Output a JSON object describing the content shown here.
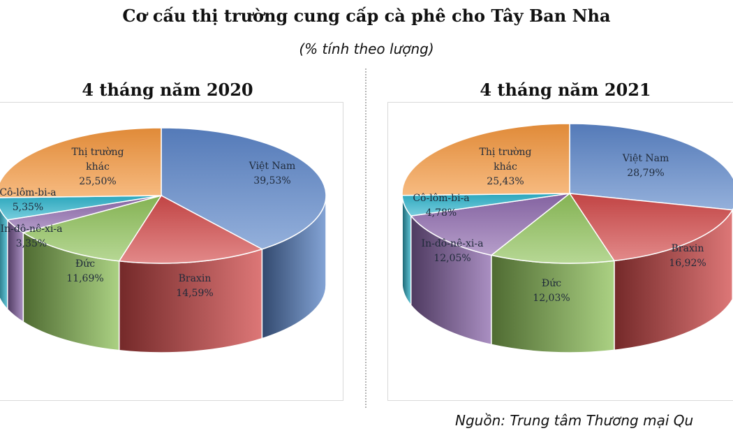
{
  "title": "Cơ cấu thị trường cung cấp cà phê cho Tây Ban Nha",
  "subtitle": "(% tính theo lượng)",
  "source": "Nguồn: Trung tâm Thương mại Qu",
  "chart_data": [
    {
      "type": "pie",
      "title": "4 tháng năm 2020",
      "categories": [
        "Việt Nam",
        "Braxin",
        "Đức",
        "In-đô-nê-xi-a",
        "Cô-lôm-bi-a",
        "Thị trường khác"
      ],
      "values": [
        39.53,
        14.59,
        11.69,
        3.35,
        5.35,
        25.5
      ],
      "value_labels": [
        "39,53%",
        "14,59%",
        "11,69%",
        "3,35%",
        "5,35%",
        "25,50%"
      ],
      "label_lines": [
        [
          "Việt Nam"
        ],
        [
          "Braxin"
        ],
        [
          "Đức"
        ],
        [
          "In-đô-nê-xi-a"
        ],
        [
          "Cô-lôm-bi-a"
        ],
        [
          "Thị trường",
          "khác"
        ]
      ],
      "colors": [
        "#5b85c8",
        "#d24a4a",
        "#8fc25a",
        "#8e6aae",
        "#2fb4cc",
        "#f3963d"
      ],
      "style": "3d"
    },
    {
      "type": "pie",
      "title": "4 tháng năm 2021",
      "categories": [
        "Việt Nam",
        "Braxin",
        "Đức",
        "In-đô-nê-xi-a",
        "Cô-lôm-bi-a",
        "Thị trường khác"
      ],
      "values": [
        28.79,
        16.92,
        12.03,
        12.05,
        4.78,
        25.43
      ],
      "value_labels": [
        "28,79%",
        "16,92%",
        "12,03%",
        "12,05%",
        "4,78%",
        "25,43%"
      ],
      "label_lines": [
        [
          "Việt Nam"
        ],
        [
          "Braxin"
        ],
        [
          "Đức"
        ],
        [
          "In-đô-nê-xi-a"
        ],
        [
          "Cô-lôm-bi-a"
        ],
        [
          "Thị trường",
          "khác"
        ]
      ],
      "colors": [
        "#5b85c8",
        "#d24a4a",
        "#8fc25a",
        "#8e6aae",
        "#2fb4cc",
        "#f3963d"
      ],
      "style": "3d"
    }
  ]
}
